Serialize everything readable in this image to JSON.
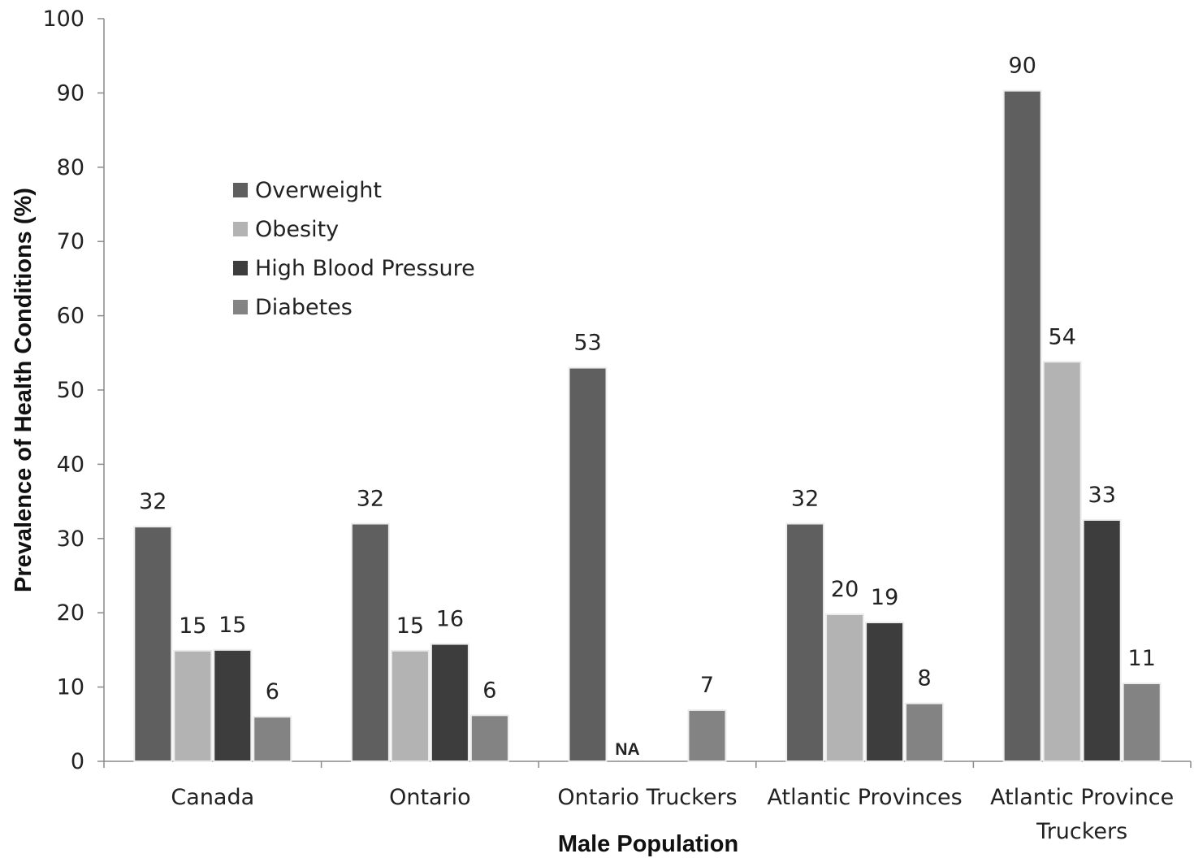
{
  "chart_data": {
    "type": "bar",
    "xlabel": "Male Population",
    "ylabel": "Prevalence of Health Conditions (%)",
    "ylim": [
      0,
      100
    ],
    "yticks": [
      "0",
      "10",
      "20",
      "30",
      "40",
      "50",
      "60",
      "70",
      "80",
      "90",
      "100"
    ],
    "categories": [
      [
        "Canada"
      ],
      [
        "Ontario"
      ],
      [
        "Ontario Truckers"
      ],
      [
        "Atlantic Provinces"
      ],
      [
        "Atlantic Province",
        "Truckers"
      ]
    ],
    "series": [
      {
        "name": "Overweight",
        "color": "#5f5f5f",
        "values": [
          31.6,
          32,
          53,
          32,
          90.3
        ],
        "labels": [
          "32",
          "32",
          "53",
          "32",
          "90"
        ]
      },
      {
        "name": "Obesity",
        "color": "#b3b3b3",
        "values": [
          14.9,
          14.9,
          null,
          19.8,
          53.8
        ],
        "labels": [
          "15",
          "15",
          "NA",
          "20",
          "54"
        ]
      },
      {
        "name": "High Blood Pressure",
        "color": "#3d3d3d",
        "values": [
          15,
          15.8,
          null,
          18.7,
          32.5
        ],
        "labels": [
          "15",
          "16",
          "",
          "19",
          "33"
        ]
      },
      {
        "name": "Diabetes",
        "color": "#838383",
        "values": [
          6,
          6.2,
          6.9,
          7.8,
          10.5
        ],
        "labels": [
          "6",
          "6",
          "7",
          "8",
          "11"
        ]
      }
    ],
    "legend_position": "upper-left",
    "grid": false
  }
}
